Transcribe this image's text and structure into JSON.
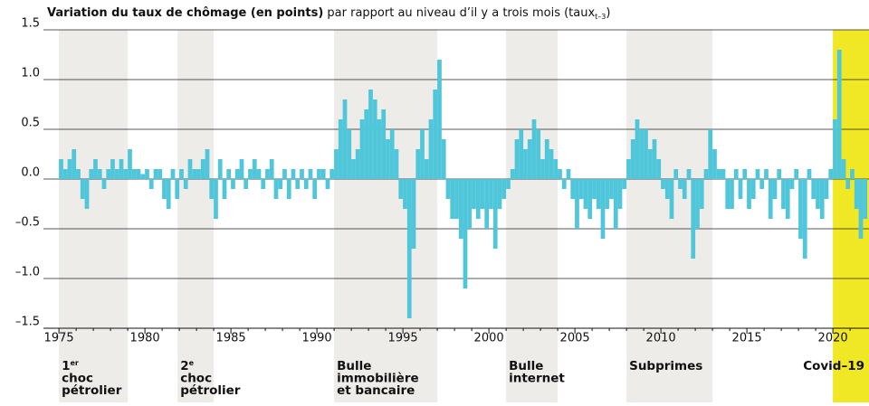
{
  "chart_data": {
    "type": "bar",
    "title_bold": "Variation du taux de chômage (en points)",
    "title_rest": " par rapport au niveau d’il y a trois mois (taux",
    "title_sub": "t–3",
    "title_end": ")",
    "color": "#4fc6d9",
    "xlim": [
      1974.1,
      2022.1
    ],
    "ylim": [
      -1.5,
      1.5
    ],
    "xticks": [
      1975,
      1980,
      1985,
      1990,
      1995,
      2000,
      2005,
      2010,
      2015,
      2020
    ],
    "xminorticks": [
      1976,
      1977,
      1978,
      1979,
      1981,
      1982,
      1983,
      1984,
      1986,
      1987,
      1988,
      1989,
      1991,
      1992,
      1993,
      1994,
      1996,
      1997,
      1998,
      1999,
      2001,
      2002,
      2003,
      2004,
      2006,
      2007,
      2008,
      2009,
      2011,
      2012,
      2013,
      2014,
      2016,
      2017,
      2018,
      2019,
      2021
    ],
    "yticks": [
      {
        "value": 1.5,
        "label": "1.5"
      },
      {
        "value": 1.0,
        "label": "1.0"
      },
      {
        "value": 0.5,
        "label": "0.5"
      },
      {
        "value": 0.0,
        "label": "0.0"
      },
      {
        "value": -0.5,
        "label": "–0.5"
      },
      {
        "value": -1.0,
        "label": "–1.0"
      },
      {
        "value": -1.5,
        "label": "–1.5"
      }
    ],
    "grid": true,
    "periods": [
      {
        "start": 1975,
        "end": 1979,
        "color": "#eeece8",
        "lines": [
          "1",
          "choc",
          "pétrolier"
        ],
        "sup": "er"
      },
      {
        "start": 1981.9,
        "end": 1984,
        "color": "#eeece8",
        "lines": [
          "2",
          "choc",
          "pétrolier"
        ],
        "sup": "e"
      },
      {
        "start": 1991,
        "end": 1997,
        "color": "#eeece8",
        "lines": [
          "Bulle",
          "immobilière",
          "et bancaire"
        ]
      },
      {
        "start": 2001,
        "end": 2004,
        "color": "#eeece8",
        "lines": [
          "Bulle",
          "internet"
        ]
      },
      {
        "start": 2008,
        "end": 2013,
        "color": "#eeece8",
        "lines": [
          "Subprimes"
        ]
      },
      {
        "start": 2020,
        "end": 2022.1,
        "color": "#f0e824",
        "lines": [
          "Covid–19"
        ]
      }
    ],
    "x": [
      1975,
      1975.25,
      1975.5,
      1975.75,
      1976,
      1976.25,
      1976.5,
      1976.75,
      1977,
      1977.25,
      1977.5,
      1977.75,
      1978,
      1978.25,
      1978.5,
      1978.75,
      1979,
      1979.25,
      1979.5,
      1979.75,
      1980,
      1980.25,
      1980.5,
      1980.75,
      1981,
      1981.25,
      1981.5,
      1981.75,
      1982,
      1982.25,
      1982.5,
      1982.75,
      1983,
      1983.25,
      1983.5,
      1983.75,
      1984,
      1984.25,
      1984.5,
      1984.75,
      1985,
      1985.25,
      1985.5,
      1985.75,
      1986,
      1986.25,
      1986.5,
      1986.75,
      1987,
      1987.25,
      1987.5,
      1987.75,
      1988,
      1988.25,
      1988.5,
      1988.75,
      1989,
      1989.25,
      1989.5,
      1989.75,
      1990,
      1990.25,
      1990.5,
      1990.75,
      1991,
      1991.25,
      1991.5,
      1991.75,
      1992,
      1992.25,
      1992.5,
      1992.75,
      1993,
      1993.25,
      1993.5,
      1993.75,
      1994,
      1994.25,
      1994.5,
      1994.75,
      1995,
      1995.25,
      1995.5,
      1995.75,
      1996,
      1996.25,
      1996.5,
      1996.75,
      1997,
      1997.25,
      1997.5,
      1997.75,
      1998,
      1998.25,
      1998.5,
      1998.75,
      1999,
      1999.25,
      1999.5,
      1999.75,
      2000,
      2000.25,
      2000.5,
      2000.75,
      2001,
      2001.25,
      2001.5,
      2001.75,
      2002,
      2002.25,
      2002.5,
      2002.75,
      2003,
      2003.25,
      2003.5,
      2003.75,
      2004,
      2004.25,
      2004.5,
      2004.75,
      2005,
      2005.25,
      2005.5,
      2005.75,
      2006,
      2006.25,
      2006.5,
      2006.75,
      2007,
      2007.25,
      2007.5,
      2007.75,
      2008,
      2008.25,
      2008.5,
      2008.75,
      2009,
      2009.25,
      2009.5,
      2009.75,
      2010,
      2010.25,
      2010.5,
      2010.75,
      2011,
      2011.25,
      2011.5,
      2011.75,
      2012,
      2012.25,
      2012.5,
      2012.75,
      2013,
      2013.25,
      2013.5,
      2013.75,
      2014,
      2014.25,
      2014.5,
      2014.75,
      2015,
      2015.25,
      2015.5,
      2015.75,
      2016,
      2016.25,
      2016.5,
      2016.75,
      2017,
      2017.25,
      2017.5,
      2017.75,
      2018,
      2018.25,
      2018.5,
      2018.75,
      2019,
      2019.25,
      2019.5,
      2019.75,
      2020,
      2020.25,
      2020.5,
      2020.75,
      2021,
      2021.25,
      2021.5,
      2021.75
    ],
    "values": [
      0.2,
      0.1,
      0.2,
      0.3,
      0.1,
      -0.2,
      -0.3,
      0.1,
      0.2,
      0.1,
      -0.1,
      0.1,
      0.2,
      0.1,
      0.2,
      0.1,
      0.3,
      0.1,
      0.1,
      0.05,
      0.1,
      -0.1,
      0.1,
      0.1,
      -0.2,
      -0.3,
      0.1,
      -0.2,
      0.1,
      -0.1,
      0.2,
      0.1,
      0.1,
      0.2,
      0.3,
      -0.2,
      -0.4,
      0.2,
      -0.2,
      0.1,
      -0.1,
      0.1,
      0.2,
      -0.1,
      0.1,
      0.2,
      0.1,
      -0.1,
      0.1,
      0.2,
      -0.2,
      -0.1,
      0.1,
      -0.2,
      0.1,
      -0.1,
      0.1,
      -0.1,
      0.1,
      -0.2,
      0.1,
      0.1,
      -0.1,
      0.1,
      0.3,
      0.6,
      0.8,
      0.5,
      0.2,
      0.3,
      0.6,
      0.7,
      0.9,
      0.8,
      0.6,
      0.7,
      0.4,
      0.5,
      0.3,
      -0.2,
      -0.3,
      -1.4,
      -0.7,
      0.3,
      0.5,
      0.2,
      0.6,
      0.9,
      1.2,
      0.4,
      -0.2,
      -0.4,
      -0.4,
      -0.6,
      -1.1,
      -0.5,
      -0.3,
      -0.4,
      -0.3,
      -0.5,
      -0.3,
      -0.7,
      -0.3,
      -0.2,
      -0.1,
      0.1,
      0.4,
      0.5,
      0.3,
      0.4,
      0.6,
      0.5,
      0.2,
      0.4,
      0.3,
      0.2,
      0.1,
      -0.1,
      0.1,
      -0.2,
      -0.5,
      -0.2,
      -0.3,
      -0.4,
      -0.2,
      -0.3,
      -0.6,
      -0.3,
      -0.2,
      -0.5,
      -0.3,
      -0.1,
      0.2,
      0.4,
      0.6,
      0.5,
      0.5,
      0.3,
      0.4,
      0.2,
      -0.1,
      -0.2,
      -0.4,
      0.1,
      -0.1,
      -0.2,
      0.1,
      -0.8,
      -0.5,
      -0.3,
      0.1,
      0.5,
      0.3,
      0.1,
      0.1,
      -0.3,
      -0.3,
      0.1,
      -0.2,
      0.1,
      -0.3,
      -0.2,
      0.1,
      -0.1,
      0.1,
      -0.4,
      -0.2,
      0.1,
      -0.3,
      -0.4,
      -0.1,
      0.1,
      -0.6,
      -0.8,
      0.1,
      -0.2,
      -0.3,
      -0.4,
      -0.2,
      0.1,
      0.6,
      1.3,
      0.2,
      -0.1,
      0.1,
      -0.3,
      -0.6,
      -0.4
    ]
  }
}
